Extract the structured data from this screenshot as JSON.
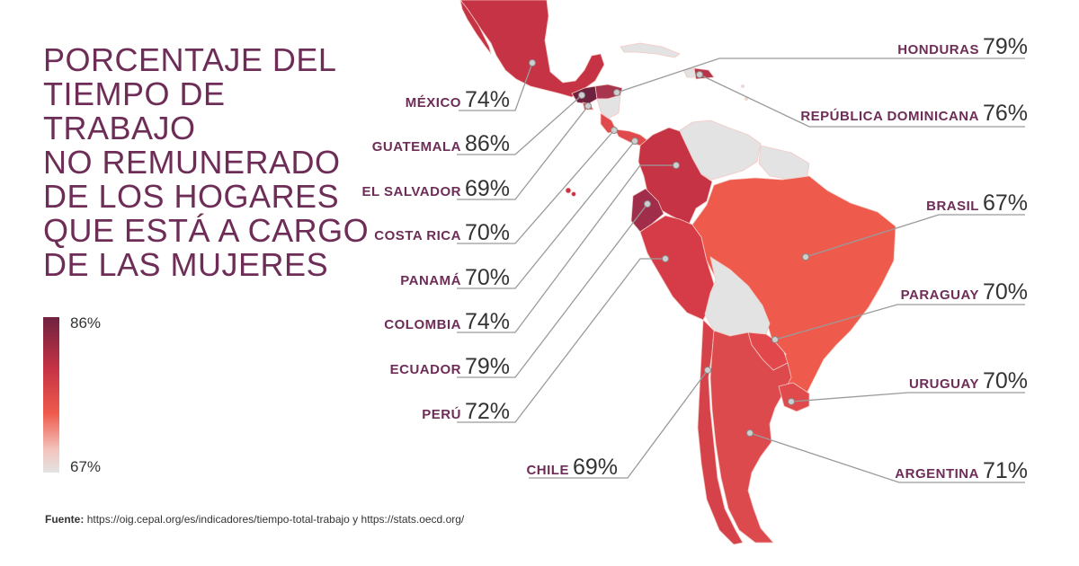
{
  "title_lines": [
    "PORCENTAJE DEL",
    "TIEMPO DE TRABAJO",
    "NO REMUNERADO",
    "DE LOS HOGARES",
    "QUE ESTÁ A CARGO",
    "DE LAS MUJERES"
  ],
  "legend": {
    "max": "86%",
    "min": "67%"
  },
  "colors": {
    "title": "#6e2d57",
    "max": "#6f2240",
    "high": "#c53345",
    "mid": "#ee5b4d",
    "no_data": "#e3e3e3"
  },
  "countries": [
    {
      "id": "mexico",
      "name": "MÉXICO",
      "value": "74%"
    },
    {
      "id": "guatemala",
      "name": "GUATEMALA",
      "value": "86%"
    },
    {
      "id": "el-salvador",
      "name": "EL SALVADOR",
      "value": "69%"
    },
    {
      "id": "costa-rica",
      "name": "COSTA RICA",
      "value": "70%"
    },
    {
      "id": "panama",
      "name": "PANAMÁ",
      "value": "70%"
    },
    {
      "id": "colombia",
      "name": "COLOMBIA",
      "value": "74%"
    },
    {
      "id": "ecuador",
      "name": "ECUADOR",
      "value": "79%"
    },
    {
      "id": "peru",
      "name": "PERÚ",
      "value": "72%"
    },
    {
      "id": "chile",
      "name": "CHILE",
      "value": "69%"
    },
    {
      "id": "honduras",
      "name": "HONDURAS",
      "value": "79%"
    },
    {
      "id": "republica-dominicana",
      "name": "REPÚBLICA DOMINICANA",
      "value": "76%"
    },
    {
      "id": "brasil",
      "name": "BRASIL",
      "value": "67%"
    },
    {
      "id": "paraguay",
      "name": "PARAGUAY",
      "value": "70%"
    },
    {
      "id": "uruguay",
      "name": "URUGUAY",
      "value": "70%"
    },
    {
      "id": "argentina",
      "name": "ARGENTINA",
      "value": "71%"
    }
  ],
  "source": {
    "label": "Fuente:",
    "text": "https://oig.cepal.org/es/indicadores/tiempo-total-trabajo y https://stats.oecd.org/"
  }
}
